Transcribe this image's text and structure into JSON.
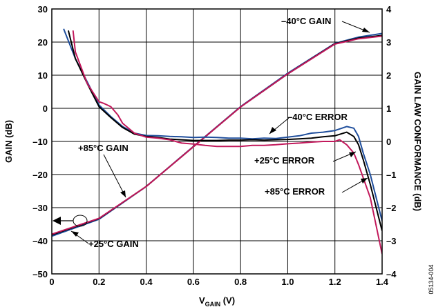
{
  "chart_data": {
    "type": "line",
    "xlabel_main": "V",
    "xlabel_sub": "GAIN",
    "xlabel_unit": " (V)",
    "ylabel": "GAIN (dB)",
    "y2label": "GAIN LAW CONFORMANCE (dB)",
    "figure_id": "05134-004",
    "xlim": [
      0,
      1.4
    ],
    "ylim": [
      -50,
      30
    ],
    "y2lim": [
      -4,
      4
    ],
    "grid": true,
    "x_ticks": [
      "0",
      "0.2",
      "0.4",
      "0.6",
      "0.8",
      "1.0",
      "1.2",
      "1.4"
    ],
    "y_ticks": [
      "30",
      "20",
      "10",
      "0",
      "–10",
      "–20",
      "–30",
      "–40",
      "–50"
    ],
    "y2_ticks": [
      "4",
      "3",
      "2",
      "1",
      "0",
      "–1",
      "–2",
      "–3",
      "–4"
    ],
    "colors": {
      "m40C": "#1f4e9c",
      "p25C": "#000000",
      "p85C": "#c2185b"
    },
    "annotations": {
      "m40_gain": "–40°C GAIN",
      "m40_error": "–40°C ERROR",
      "p25_error": "+25°C ERROR",
      "p85_error": "+85°C ERROR",
      "p85_gain": "+85°C GAIN",
      "p25_gain": "+25°C GAIN"
    },
    "series": [
      {
        "key": "m40C",
        "axis": "left",
        "x": [
          0.0,
          0.2,
          0.4,
          0.6,
          0.8,
          1.0,
          1.2,
          1.3,
          1.4
        ],
        "y": [
          -38.6,
          -33.5,
          -23.6,
          -11.5,
          0.5,
          10.6,
          19.6,
          21.5,
          22.6
        ]
      },
      {
        "key": "p25C",
        "axis": "left",
        "x": [
          0.0,
          0.2,
          0.4,
          0.6,
          0.8,
          1.0,
          1.2,
          1.3,
          1.4
        ],
        "y": [
          -38.2,
          -33.3,
          -23.6,
          -11.6,
          0.4,
          10.4,
          19.5,
          21.2,
          22.0
        ]
      },
      {
        "key": "p85C",
        "axis": "left",
        "x": [
          0.0,
          0.2,
          0.4,
          0.6,
          0.8,
          1.0,
          1.2,
          1.3,
          1.4
        ],
        "y": [
          -38.0,
          -33.2,
          -23.6,
          -11.6,
          0.4,
          10.4,
          19.4,
          21.0,
          21.8
        ]
      },
      {
        "key": "m40C",
        "axis": "right",
        "x": [
          0.05,
          0.1,
          0.15,
          0.2,
          0.25,
          0.3,
          0.35,
          0.4,
          0.45,
          0.5,
          0.55,
          0.6,
          0.65,
          0.7,
          0.75,
          0.8,
          0.85,
          0.9,
          0.95,
          1.0,
          1.05,
          1.1,
          1.15,
          1.2,
          1.25,
          1.28,
          1.3,
          1.32,
          1.35,
          1.4
        ],
        "y": [
          3.4,
          2.5,
          1.8,
          1.1,
          0.75,
          0.45,
          0.25,
          0.18,
          0.17,
          0.15,
          0.14,
          0.12,
          0.13,
          0.12,
          0.1,
          0.1,
          0.08,
          0.1,
          0.09,
          0.13,
          0.17,
          0.25,
          0.28,
          0.33,
          0.45,
          0.4,
          0.15,
          -0.35,
          -1.0,
          -2.4
        ]
      },
      {
        "key": "p25C",
        "axis": "right",
        "x": [
          0.07,
          0.1,
          0.15,
          0.2,
          0.25,
          0.3,
          0.35,
          0.4,
          0.45,
          0.5,
          0.55,
          0.6,
          0.65,
          0.7,
          0.75,
          0.8,
          0.85,
          0.9,
          0.95,
          1.0,
          1.05,
          1.1,
          1.15,
          1.2,
          1.25,
          1.28,
          1.3,
          1.32,
          1.35,
          1.4
        ],
        "y": [
          3.35,
          2.5,
          1.75,
          1.05,
          0.72,
          0.42,
          0.22,
          0.15,
          0.12,
          0.07,
          0.05,
          0.03,
          0.03,
          0.03,
          0.04,
          0.04,
          0.05,
          0.04,
          0.05,
          0.06,
          0.08,
          0.1,
          0.14,
          0.17,
          0.28,
          0.15,
          -0.1,
          -0.55,
          -1.3,
          -2.7
        ]
      },
      {
        "key": "p85C",
        "axis": "right",
        "x": [
          0.09,
          0.1,
          0.15,
          0.2,
          0.22,
          0.25,
          0.28,
          0.3,
          0.35,
          0.4,
          0.45,
          0.5,
          0.55,
          0.6,
          0.65,
          0.7,
          0.75,
          0.8,
          0.85,
          0.9,
          0.95,
          1.0,
          1.05,
          1.1,
          1.15,
          1.2,
          1.22,
          1.25,
          1.28,
          1.3,
          1.35,
          1.4
        ],
        "y": [
          3.35,
          2.7,
          1.75,
          1.2,
          1.15,
          1.05,
          0.8,
          0.55,
          0.25,
          0.13,
          0.1,
          0.05,
          -0.05,
          -0.08,
          -0.12,
          -0.15,
          -0.15,
          -0.15,
          -0.12,
          -0.12,
          -0.1,
          -0.07,
          -0.05,
          -0.02,
          0.0,
          0.0,
          0.05,
          -0.1,
          -0.35,
          -0.7,
          -1.7,
          -3.4
        ]
      }
    ]
  }
}
